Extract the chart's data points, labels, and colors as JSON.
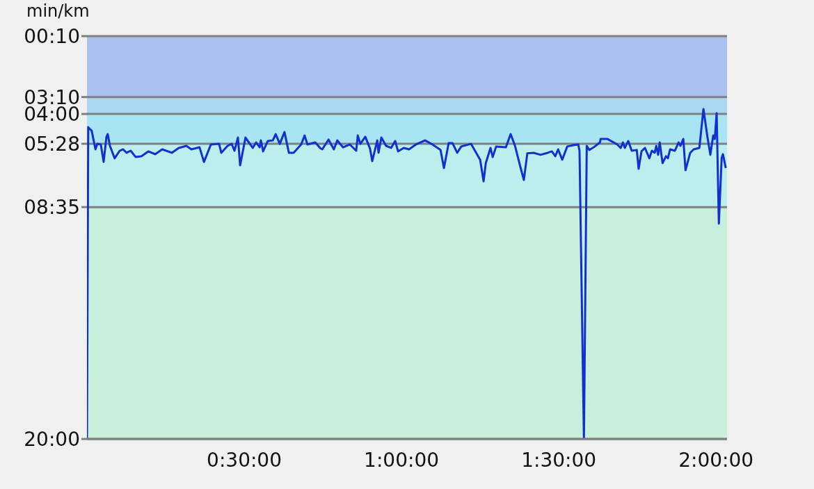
{
  "chart_data": {
    "type": "line",
    "ylabel": "min/km",
    "x": [
      0,
      0.004,
      0.007,
      0.015,
      0.027,
      0.033,
      0.044,
      0.053,
      0.062,
      0.066,
      0.073,
      0.088,
      0.104,
      0.115,
      0.126,
      0.139,
      0.155,
      0.173,
      0.195,
      0.217,
      0.239,
      0.27,
      0.292,
      0.316,
      0.332,
      0.358,
      0.372,
      0.394,
      0.42,
      0.427,
      0.447,
      0.46,
      0.469,
      0.48,
      0.487,
      0.504,
      0.527,
      0.538,
      0.549,
      0.553,
      0.56,
      0.575,
      0.591,
      0.6,
      0.613,
      0.628,
      0.642,
      0.657,
      0.681,
      0.692,
      0.701,
      0.726,
      0.741,
      0.748,
      0.768,
      0.785,
      0.796,
      0.814,
      0.836,
      0.856,
      0.861,
      0.869,
      0.885,
      0.9,
      0.907,
      0.923,
      0.927,
      0.936,
      0.951,
      0.967,
      0.98,
      0.989,
      1.007,
      1.024,
      1.046,
      1.075,
      1.095,
      1.124,
      1.135,
      1.15,
      1.162,
      1.177,
      1.19,
      1.221,
      1.25,
      1.261,
      1.268,
      1.283,
      1.29,
      1.301,
      1.332,
      1.347,
      1.361,
      1.376,
      1.389,
      1.4,
      1.42,
      1.442,
      1.465,
      1.478,
      1.489,
      1.498,
      1.511,
      1.527,
      1.549,
      1.562,
      1.566,
      1.58,
      1.589,
      1.597,
      1.611,
      1.631,
      1.633,
      1.655,
      1.686,
      1.697,
      1.704,
      1.71,
      1.721,
      1.732,
      1.748,
      1.754,
      1.763,
      1.774,
      1.788,
      1.796,
      1.805,
      1.81,
      1.816,
      1.821,
      1.83,
      1.841,
      1.847,
      1.854,
      1.869,
      1.881,
      1.887,
      1.896,
      1.903,
      1.918,
      1.929,
      1.947,
      1.96,
      1.973,
      1.982,
      1.991,
      1.996,
      2.002,
      2.009,
      2.018,
      2.022,
      2.031
    ],
    "series": [
      {
        "color": "#1030d0",
        "values": [
          20,
          4.65,
          4.71,
          4.82,
          5.74,
          5.47,
          5.5,
          6.36,
          5.12,
          4.99,
          5.57,
          6.18,
          5.81,
          5.74,
          5.91,
          5.81,
          6.12,
          6.08,
          5.84,
          5.98,
          5.74,
          5.91,
          5.67,
          5.57,
          5.74,
          5.64,
          6.36,
          5.5,
          5.47,
          5.91,
          5.57,
          5.47,
          5.81,
          5.16,
          6.53,
          5.16,
          5.67,
          5.4,
          5.64,
          5.3,
          5.84,
          5.33,
          5.3,
          4.99,
          5.47,
          4.89,
          5.91,
          5.91,
          5.5,
          5.06,
          5.5,
          5.4,
          5.67,
          5.74,
          5.26,
          5.74,
          5.3,
          5.64,
          5.5,
          5.81,
          5.06,
          5.47,
          5.12,
          5.71,
          6.32,
          5.3,
          5.91,
          5.16,
          5.57,
          5.67,
          5.33,
          5.84,
          5.67,
          5.74,
          5.5,
          5.3,
          5.47,
          5.77,
          6.66,
          5.43,
          5.43,
          5.91,
          5.6,
          5.47,
          6.25,
          7.31,
          6.42,
          5.67,
          6.12,
          5.6,
          5.64,
          4.99,
          5.57,
          6.49,
          7.25,
          5.94,
          5.91,
          6.01,
          5.91,
          5.84,
          6.08,
          5.74,
          6.25,
          5.6,
          5.53,
          5.5,
          5.81,
          20,
          5.57,
          5.77,
          5.64,
          5.4,
          5.23,
          5.23,
          5.5,
          5.67,
          5.4,
          5.67,
          5.33,
          5.81,
          5.77,
          6.7,
          5.84,
          5.67,
          6.18,
          5.81,
          5.91,
          5.57,
          6.01,
          5.4,
          6.42,
          6.08,
          6.18,
          5.74,
          5.81,
          5.4,
          5.57,
          5.23,
          6.77,
          5.91,
          5.74,
          5.67,
          3.76,
          5.16,
          6.01,
          5.06,
          5.23,
          3.96,
          9.4,
          6.15,
          5.98,
          6.66
        ]
      }
    ],
    "xlim": [
      0,
      2.035
    ],
    "xticks": [
      {
        "value": 0.5,
        "label": "0:30:00"
      },
      {
        "value": 1,
        "label": "1:00:00"
      },
      {
        "value": 1.5,
        "label": "1:30:00"
      },
      {
        "value": 2,
        "label": "2:00:00"
      }
    ],
    "ylim": [
      20,
      0.1667
    ],
    "yticks": [
      {
        "value": 0.1667,
        "label": "00:10"
      },
      {
        "value": 3.1667,
        "label": "03:10"
      },
      {
        "value": 4,
        "label": "04:00"
      },
      {
        "value": 5.4667,
        "label": "05:28"
      },
      {
        "value": 8.5833,
        "label": "08:35"
      },
      {
        "value": 20,
        "label": "20:00"
      }
    ],
    "bands": [
      {
        "axis": "y",
        "from": 0.1667,
        "to": 3.1667,
        "color": "#a9bff0"
      },
      {
        "axis": "y",
        "from": 3.1667,
        "to": 4,
        "color": "#a9d8f0"
      },
      {
        "axis": "y",
        "from": 4,
        "to": 5.4667,
        "color": "#a8e4f2"
      },
      {
        "axis": "y",
        "from": 5.4667,
        "to": 8.5833,
        "color": "#bceeee"
      },
      {
        "axis": "y",
        "from": 8.5833,
        "to": 20,
        "color": "#c8eedc"
      }
    ],
    "grid": "y",
    "marker": "none",
    "line_style": "solid"
  }
}
